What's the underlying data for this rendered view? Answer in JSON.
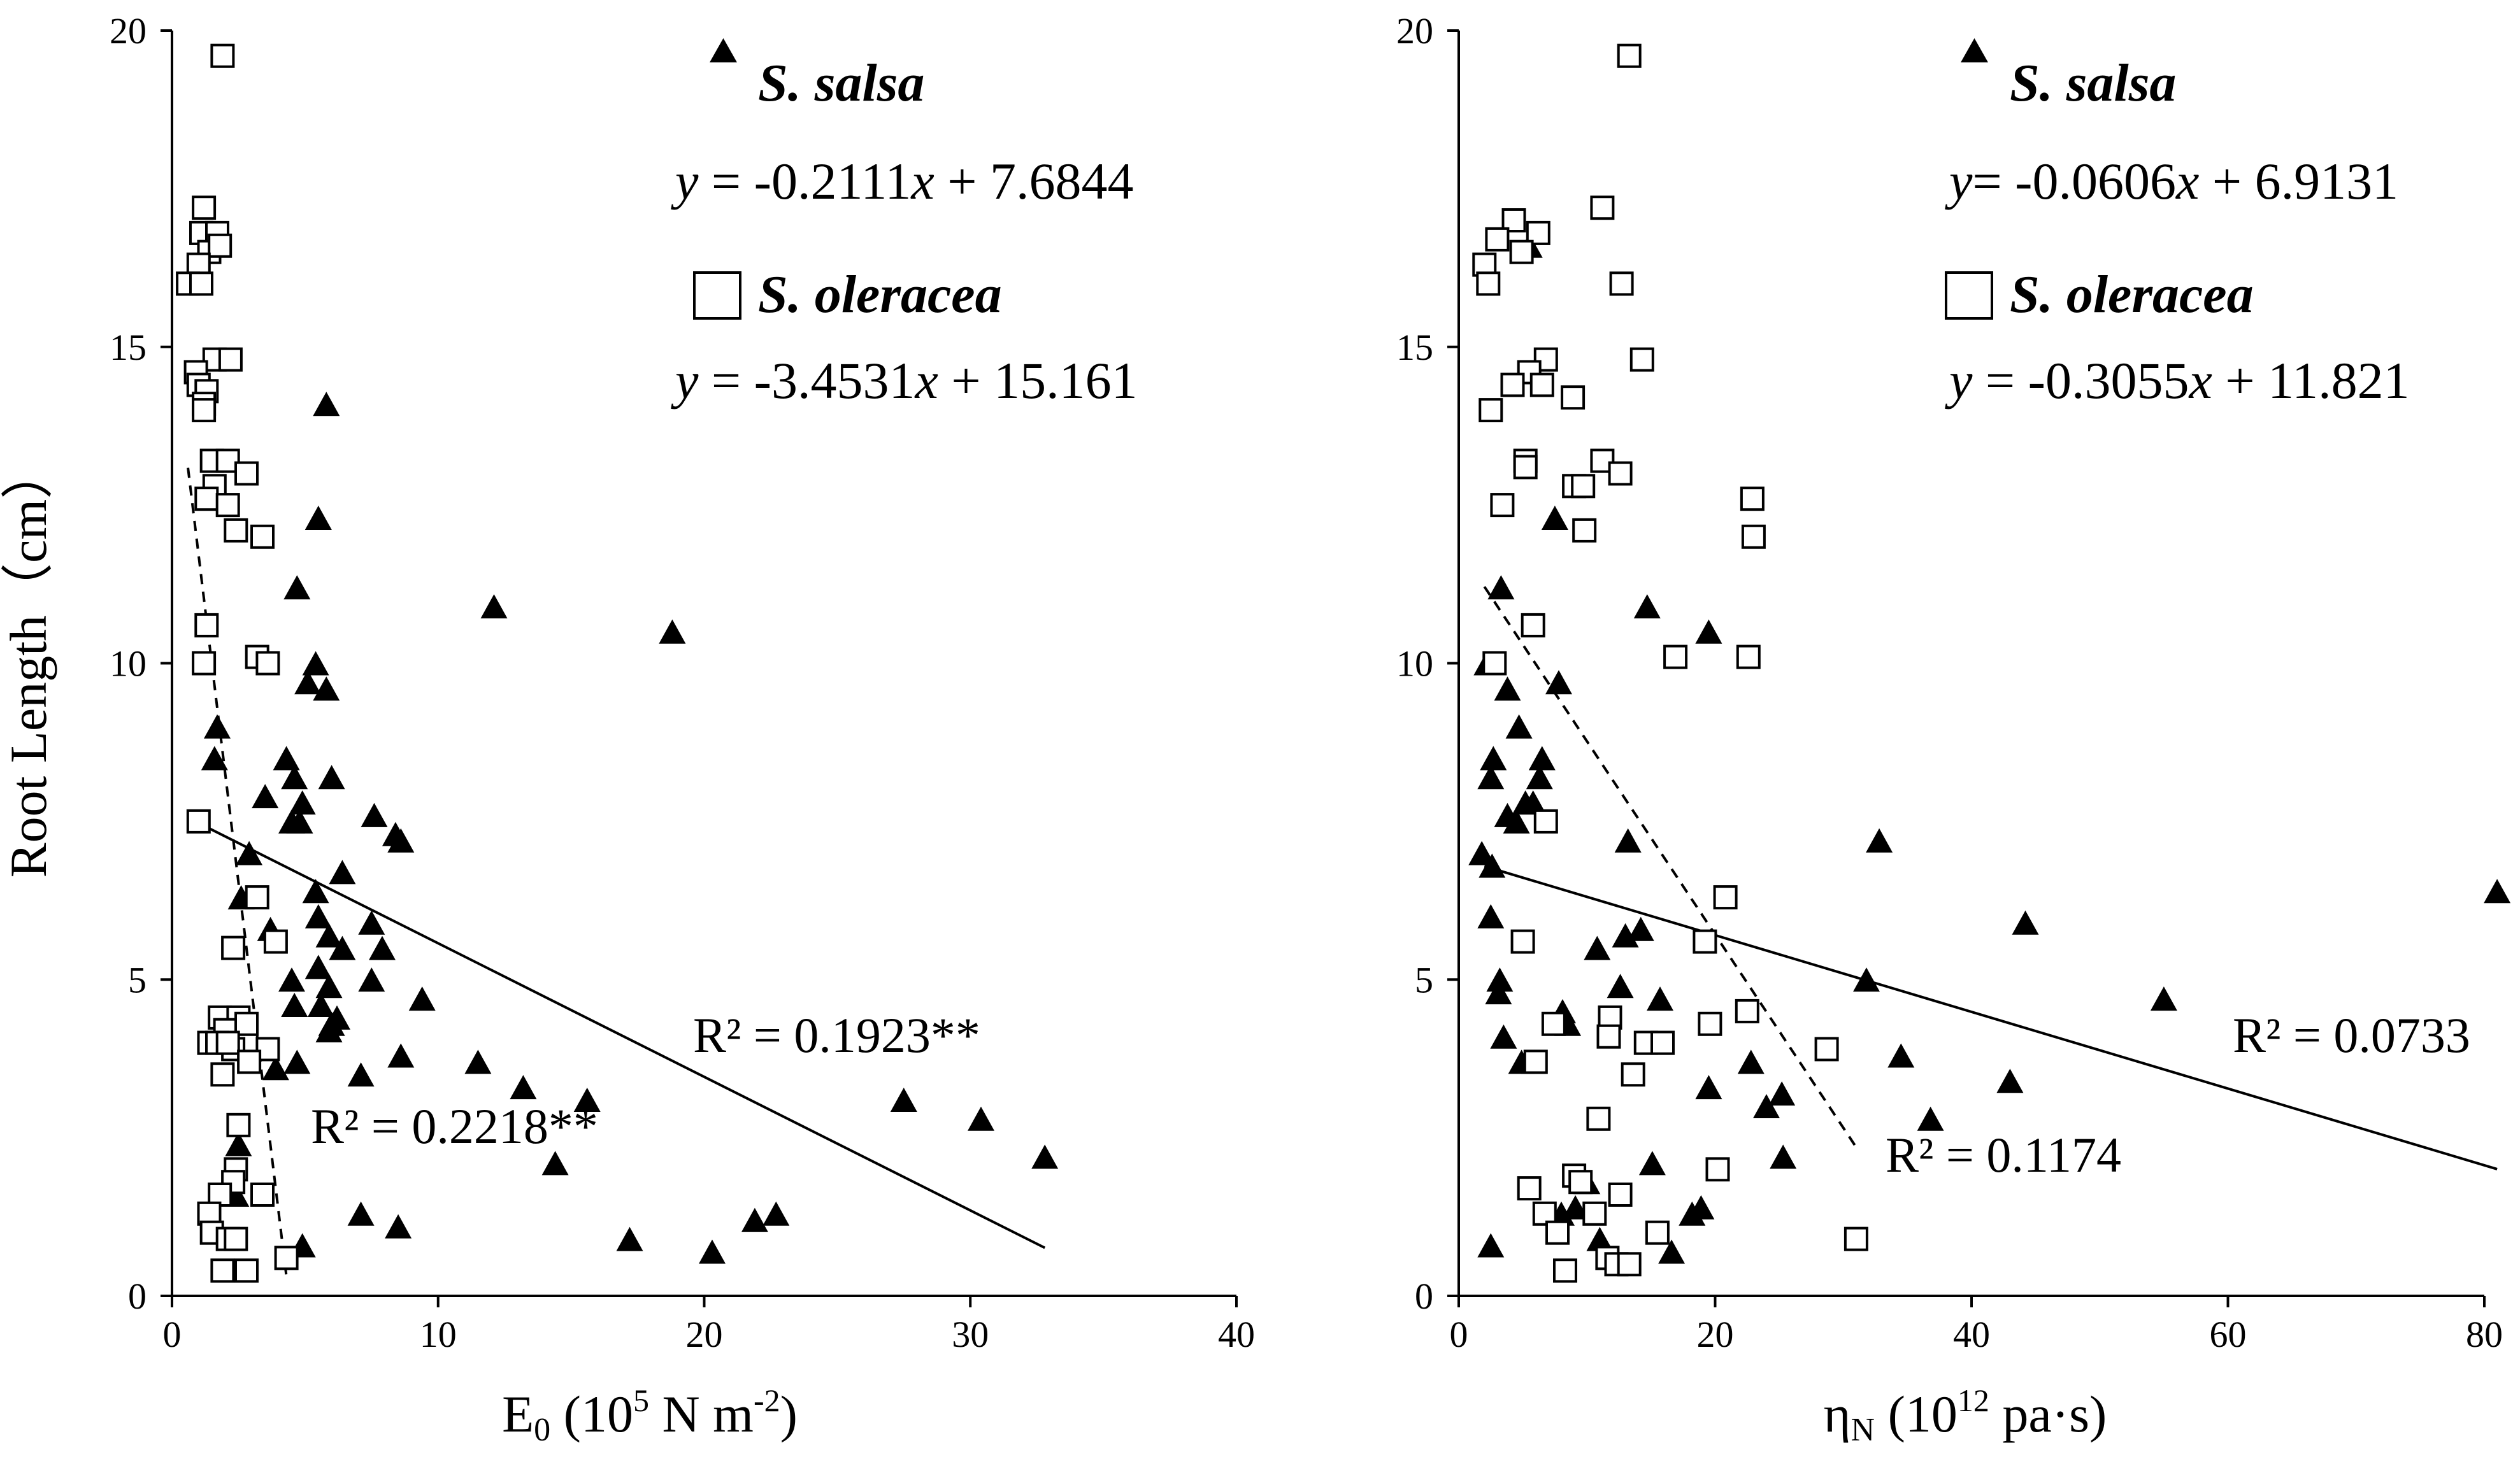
{
  "chart_data": [
    {
      "type": "scatter",
      "panel": "left",
      "ylabel": "Root Length（cm）",
      "xlabel_parts": {
        "base": "E",
        "sub": "0",
        "open": " (10",
        "sup1": "5",
        "unit": " N m",
        "sup2": "-2",
        "close": ")"
      },
      "xlim": [
        0,
        40
      ],
      "ylim": [
        0,
        20
      ],
      "xticks": [
        "0",
        "10",
        "20",
        "30",
        "40"
      ],
      "yticks": [
        "0",
        "5",
        "10",
        "15",
        "20"
      ],
      "legend": [
        {
          "marker": "filled-triangle",
          "label": "S. salsa",
          "equation_y": "y",
          "equation_rest": " = -0.2111",
          "equation_x": "x",
          "equation_tail": " + 7.6844"
        },
        {
          "marker": "open-square",
          "label": "S. oleracea",
          "equation_y": "y",
          "equation_rest": " = -3.4531",
          "equation_x": "x",
          "equation_tail": " + 15.161"
        }
      ],
      "r2_labels": [
        {
          "series": "S. salsa",
          "text": "R² = 0.1923**"
        },
        {
          "series": "S. oleracea",
          "text": "R² = 0.2218**"
        }
      ],
      "trendlines": [
        {
          "series": "S. salsa",
          "style": "solid",
          "slope": -0.2111,
          "intercept": 7.6844,
          "x_range": [
            0.8,
            32.8
          ]
        },
        {
          "series": "S. oleracea",
          "style": "dashed",
          "slope": -3.4531,
          "intercept": 15.161,
          "x_range": [
            0.6,
            4.3
          ]
        }
      ],
      "series": [
        {
          "name": "S. salsa",
          "marker": "filled-triangle",
          "points": [
            [
              5.8,
              14.1
            ],
            [
              5.5,
              12.3
            ],
            [
              12.1,
              10.9
            ],
            [
              18.8,
              10.5
            ],
            [
              4.7,
              11.2
            ],
            [
              5.4,
              10.0
            ],
            [
              5.1,
              9.7
            ],
            [
              5.8,
              9.6
            ],
            [
              1.7,
              9.0
            ],
            [
              1.6,
              8.5
            ],
            [
              4.3,
              8.5
            ],
            [
              4.6,
              8.2
            ],
            [
              6.0,
              8.2
            ],
            [
              3.5,
              7.9
            ],
            [
              4.9,
              7.8
            ],
            [
              7.6,
              7.6
            ],
            [
              4.5,
              7.5
            ],
            [
              4.8,
              7.5
            ],
            [
              8.4,
              7.3
            ],
            [
              8.6,
              7.2
            ],
            [
              2.9,
              7.0
            ],
            [
              6.4,
              6.7
            ],
            [
              5.4,
              6.4
            ],
            [
              2.6,
              6.3
            ],
            [
              3.7,
              5.8
            ],
            [
              5.5,
              6.0
            ],
            [
              5.9,
              5.7
            ],
            [
              7.5,
              5.9
            ],
            [
              6.4,
              5.5
            ],
            [
              7.9,
              5.5
            ],
            [
              5.5,
              5.2
            ],
            [
              4.5,
              5.0
            ],
            [
              5.9,
              4.9
            ],
            [
              7.5,
              5.0
            ],
            [
              4.6,
              4.6
            ],
            [
              5.6,
              4.6
            ],
            [
              6.2,
              4.4
            ],
            [
              9.4,
              4.7
            ],
            [
              6.0,
              4.3
            ],
            [
              5.9,
              4.2
            ],
            [
              4.7,
              3.7
            ],
            [
              8.6,
              3.8
            ],
            [
              11.5,
              3.7
            ],
            [
              3.9,
              3.6
            ],
            [
              7.1,
              3.5
            ],
            [
              13.2,
              3.3
            ],
            [
              15.6,
              3.1
            ],
            [
              27.5,
              3.1
            ],
            [
              30.4,
              2.8
            ],
            [
              2.5,
              2.4
            ],
            [
              14.4,
              2.1
            ],
            [
              32.8,
              2.2
            ],
            [
              2.4,
              1.6
            ],
            [
              7.1,
              1.3
            ],
            [
              8.5,
              1.1
            ],
            [
              21.9,
              1.2
            ],
            [
              22.7,
              1.3
            ],
            [
              17.2,
              0.9
            ],
            [
              20.3,
              0.7
            ],
            [
              4.9,
              0.8
            ]
          ]
        },
        {
          "name": "S. oleracea",
          "marker": "open-square",
          "points": [
            [
              1.9,
              19.6
            ],
            [
              1.2,
              17.2
            ],
            [
              1.1,
              16.8
            ],
            [
              1.7,
              16.8
            ],
            [
              1.4,
              16.5
            ],
            [
              1.8,
              16.6
            ],
            [
              1.0,
              16.3
            ],
            [
              0.6,
              16.0
            ],
            [
              1.1,
              16.0
            ],
            [
              1.6,
              14.8
            ],
            [
              2.2,
              14.8
            ],
            [
              0.9,
              14.6
            ],
            [
              1.0,
              14.4
            ],
            [
              1.3,
              14.3
            ],
            [
              1.2,
              14.1
            ],
            [
              1.2,
              14.0
            ],
            [
              1.5,
              13.2
            ],
            [
              2.1,
              13.2
            ],
            [
              1.6,
              12.8
            ],
            [
              2.8,
              13.0
            ],
            [
              1.3,
              12.6
            ],
            [
              2.1,
              12.5
            ],
            [
              2.4,
              12.1
            ],
            [
              3.4,
              12.0
            ],
            [
              1.3,
              10.6
            ],
            [
              1.2,
              10.0
            ],
            [
              3.2,
              10.1
            ],
            [
              3.6,
              10.0
            ],
            [
              1.0,
              7.5
            ],
            [
              3.2,
              6.3
            ],
            [
              2.3,
              5.5
            ],
            [
              3.9,
              5.6
            ],
            [
              1.8,
              4.4
            ],
            [
              2.5,
              4.4
            ],
            [
              2.0,
              4.2
            ],
            [
              2.8,
              4.3
            ],
            [
              1.4,
              4.0
            ],
            [
              1.7,
              4.0
            ],
            [
              2.3,
              3.9
            ],
            [
              2.1,
              4.0
            ],
            [
              3.6,
              3.9
            ],
            [
              2.9,
              3.7
            ],
            [
              1.9,
              3.5
            ],
            [
              2.5,
              2.7
            ],
            [
              2.4,
              2.0
            ],
            [
              2.3,
              1.8
            ],
            [
              1.8,
              1.6
            ],
            [
              3.4,
              1.6
            ],
            [
              1.4,
              1.3
            ],
            [
              1.5,
              1.0
            ],
            [
              2.1,
              0.9
            ],
            [
              2.4,
              0.9
            ],
            [
              4.3,
              0.6
            ],
            [
              1.9,
              0.4
            ],
            [
              2.8,
              0.4
            ]
          ]
        }
      ]
    },
    {
      "type": "scatter",
      "panel": "right",
      "xlabel_parts": {
        "base": "η",
        "sub": "N",
        "open": " (10",
        "sup1": "12",
        "unit": " pa·s",
        "sup2": "",
        "close": ")"
      },
      "xlim": [
        0,
        80
      ],
      "ylim": [
        0,
        20
      ],
      "xticks": [
        "0",
        "20",
        "40",
        "60",
        "80"
      ],
      "yticks": [
        "0",
        "5",
        "10",
        "15",
        "20"
      ],
      "legend": [
        {
          "marker": "filled-triangle",
          "label": "S. salsa",
          "equation_y": "y",
          "equation_rest": "= -0.0606",
          "equation_x": "x",
          "equation_tail": " + 6.9131"
        },
        {
          "marker": "open-square",
          "label": "S. oleracea",
          "equation_y": "y",
          "equation_rest": " = -0.3055",
          "equation_x": "x",
          "equation_tail": " + 11.821"
        }
      ],
      "r2_labels": [
        {
          "series": "S. salsa",
          "text": "R² = 0.0733"
        },
        {
          "series": "S. oleracea",
          "text": "R² = 0.1174"
        }
      ],
      "trendlines": [
        {
          "series": "S. salsa",
          "style": "solid",
          "slope": -0.0606,
          "intercept": 6.9131,
          "x_range": [
            2.0,
            81.0
          ]
        },
        {
          "series": "S. oleracea",
          "style": "dashed",
          "slope": -0.3055,
          "intercept": 11.821,
          "x_range": [
            2.0,
            31.0
          ]
        }
      ],
      "series": [
        {
          "name": "S. salsa",
          "marker": "filled-triangle",
          "points": [
            [
              5.5,
              16.6
            ],
            [
              7.5,
              12.3
            ],
            [
              3.3,
              11.2
            ],
            [
              14.7,
              10.9
            ],
            [
              19.5,
              10.5
            ],
            [
              2.2,
              10.0
            ],
            [
              3.8,
              9.6
            ],
            [
              7.8,
              9.7
            ],
            [
              4.7,
              9.0
            ],
            [
              2.7,
              8.5
            ],
            [
              6.5,
              8.5
            ],
            [
              2.5,
              8.2
            ],
            [
              6.3,
              8.2
            ],
            [
              5.2,
              7.8
            ],
            [
              5.8,
              7.8
            ],
            [
              3.8,
              7.6
            ],
            [
              4.5,
              7.5
            ],
            [
              13.2,
              7.2
            ],
            [
              32.8,
              7.2
            ],
            [
              1.8,
              7.0
            ],
            [
              2.6,
              6.8
            ],
            [
              81.0,
              6.4
            ],
            [
              44.2,
              5.9
            ],
            [
              2.5,
              6.0
            ],
            [
              13.0,
              5.7
            ],
            [
              14.2,
              5.8
            ],
            [
              10.8,
              5.5
            ],
            [
              31.8,
              5.0
            ],
            [
              55.0,
              4.7
            ],
            [
              3.2,
              5.0
            ],
            [
              3.1,
              4.8
            ],
            [
              12.6,
              4.9
            ],
            [
              15.7,
              4.7
            ],
            [
              8.1,
              4.5
            ],
            [
              8.5,
              4.3
            ],
            [
              3.5,
              4.1
            ],
            [
              22.8,
              3.7
            ],
            [
              34.5,
              3.8
            ],
            [
              4.9,
              3.7
            ],
            [
              5.9,
              3.7
            ],
            [
              19.5,
              3.3
            ],
            [
              25.2,
              3.2
            ],
            [
              24.0,
              3.0
            ],
            [
              43.0,
              3.4
            ],
            [
              36.8,
              2.8
            ],
            [
              15.1,
              2.1
            ],
            [
              25.3,
              2.2
            ],
            [
              10.0,
              1.8
            ],
            [
              9.1,
              1.4
            ],
            [
              18.2,
              1.3
            ],
            [
              18.9,
              1.4
            ],
            [
              8.0,
              1.3
            ],
            [
              11.0,
              0.9
            ],
            [
              16.6,
              0.7
            ],
            [
              2.5,
              0.8
            ]
          ]
        },
        {
          "name": "S. oleracea",
          "marker": "open-square",
          "points": [
            [
              13.3,
              19.6
            ],
            [
              11.2,
              17.2
            ],
            [
              4.3,
              17.0
            ],
            [
              6.2,
              16.8
            ],
            [
              3.0,
              16.7
            ],
            [
              4.9,
              16.5
            ],
            [
              2.0,
              16.3
            ],
            [
              12.7,
              16.0
            ],
            [
              2.3,
              16.0
            ],
            [
              14.3,
              14.8
            ],
            [
              6.8,
              14.8
            ],
            [
              5.5,
              14.6
            ],
            [
              4.2,
              14.4
            ],
            [
              6.5,
              14.4
            ],
            [
              8.9,
              14.2
            ],
            [
              2.5,
              14.0
            ],
            [
              5.2,
              13.2
            ],
            [
              11.2,
              13.2
            ],
            [
              5.2,
              13.1
            ],
            [
              12.6,
              13.0
            ],
            [
              9.0,
              12.8
            ],
            [
              9.7,
              12.8
            ],
            [
              22.9,
              12.6
            ],
            [
              3.4,
              12.5
            ],
            [
              9.8,
              12.1
            ],
            [
              23.0,
              12.0
            ],
            [
              5.8,
              10.6
            ],
            [
              16.9,
              10.1
            ],
            [
              22.6,
              10.1
            ],
            [
              2.8,
              10.0
            ],
            [
              6.8,
              7.5
            ],
            [
              20.8,
              6.3
            ],
            [
              19.2,
              5.6
            ],
            [
              5.0,
              5.6
            ],
            [
              22.5,
              4.5
            ],
            [
              11.8,
              4.4
            ],
            [
              19.6,
              4.3
            ],
            [
              7.4,
              4.3
            ],
            [
              11.7,
              4.1
            ],
            [
              14.6,
              4.0
            ],
            [
              15.9,
              4.0
            ],
            [
              28.7,
              3.9
            ],
            [
              6.0,
              3.7
            ],
            [
              13.6,
              3.5
            ],
            [
              10.9,
              2.8
            ],
            [
              20.2,
              2.0
            ],
            [
              9.0,
              1.9
            ],
            [
              9.5,
              1.8
            ],
            [
              5.5,
              1.7
            ],
            [
              12.6,
              1.6
            ],
            [
              10.6,
              1.3
            ],
            [
              6.7,
              1.3
            ],
            [
              7.7,
              1.0
            ],
            [
              15.5,
              1.0
            ],
            [
              31.0,
              0.9
            ],
            [
              11.6,
              0.6
            ],
            [
              12.3,
              0.5
            ],
            [
              13.3,
              0.5
            ],
            [
              8.3,
              0.4
            ]
          ]
        }
      ]
    }
  ]
}
